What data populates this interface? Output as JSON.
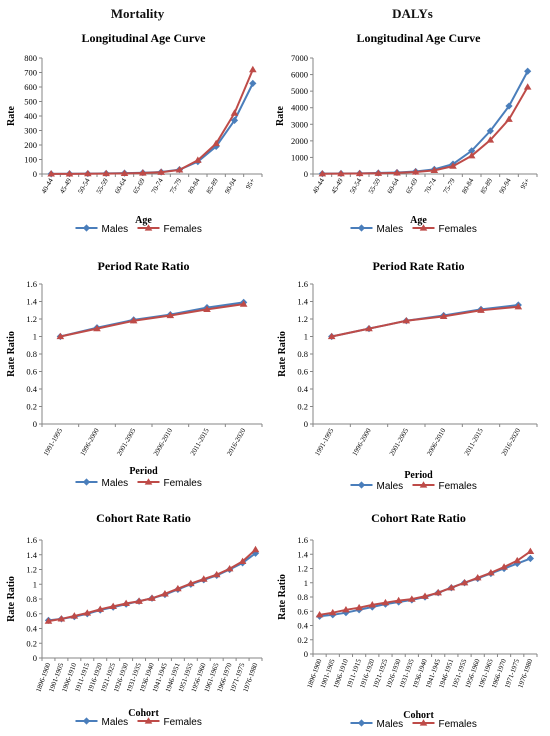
{
  "columns": {
    "mortality": "Mortality",
    "dalys": "DALYs"
  },
  "colors": {
    "males": "#4a7ebb",
    "females": "#be4b48",
    "axis": "#868686"
  },
  "chart_data": [
    {
      "id": "mort-age",
      "type": "line",
      "title": "Longitudinal Age Curve",
      "xlabel": "Age",
      "ylabel": "Rate",
      "ylim": [
        0,
        800
      ],
      "yticks": [
        "0",
        "100",
        "200",
        "300",
        "400",
        "500",
        "600",
        "700",
        "800"
      ],
      "categories": [
        "40-44",
        "45-49",
        "50-54",
        "55-59",
        "60-64",
        "65-69",
        "70-74",
        "75-79",
        "80-84",
        "85-89",
        "90-94",
        "95+"
      ],
      "series": [
        {
          "name": "Males",
          "values": [
            1,
            2,
            3,
            4,
            6,
            9,
            14,
            30,
            85,
            190,
            370,
            625
          ]
        },
        {
          "name": "Females",
          "values": [
            1,
            1,
            2,
            3,
            4,
            7,
            12,
            28,
            95,
            210,
            420,
            720
          ]
        }
      ]
    },
    {
      "id": "daly-age",
      "type": "line",
      "title": "Longitudinal Age Curve",
      "xlabel": "Age",
      "ylabel": "Rate",
      "ylim": [
        0,
        7000
      ],
      "yticks": [
        "0",
        "1000",
        "2000",
        "3000",
        "4000",
        "5000",
        "6000",
        "7000"
      ],
      "categories": [
        "40-44",
        "45-49",
        "50-54",
        "55-59",
        "60-64",
        "65-69",
        "70-74",
        "75-79",
        "80-84",
        "85-89",
        "90-94",
        "95+"
      ],
      "series": [
        {
          "name": "Males",
          "values": [
            20,
            30,
            40,
            60,
            90,
            150,
            280,
            600,
            1400,
            2600,
            4100,
            6200
          ]
        },
        {
          "name": "Females",
          "values": [
            15,
            22,
            30,
            45,
            70,
            120,
            220,
            470,
            1100,
            2050,
            3300,
            5250
          ]
        }
      ]
    },
    {
      "id": "mort-period",
      "type": "line",
      "title": "Period Rate Ratio",
      "xlabel": "Period",
      "ylabel": "Rate Ratio",
      "ylim": [
        0,
        1.6
      ],
      "yticks": [
        "0",
        "0.2",
        "0.4",
        "0.6",
        "0.8",
        "1",
        "1.2",
        "1.4",
        "1.6"
      ],
      "categories": [
        "1991-1995",
        "1996-2000",
        "2001-2005",
        "2006-2010",
        "2011-2015",
        "2016-2020"
      ],
      "series": [
        {
          "name": "Males",
          "values": [
            1.0,
            1.1,
            1.19,
            1.25,
            1.33,
            1.39
          ]
        },
        {
          "name": "Females",
          "values": [
            1.0,
            1.09,
            1.18,
            1.24,
            1.31,
            1.37
          ]
        }
      ]
    },
    {
      "id": "daly-period",
      "type": "line",
      "title": "Period Rate Ratio",
      "xlabel": "Period",
      "ylabel": "Rate Ratio",
      "ylim": [
        0,
        1.6
      ],
      "yticks": [
        "0",
        "0.2",
        "0.4",
        "0.6",
        "0.8",
        "1",
        "1.2",
        "1.4",
        "1.6"
      ],
      "categories": [
        "1991-1995",
        "1996-2000",
        "2001-2005",
        "2006-2010",
        "2011-2015",
        "2016-2020"
      ],
      "series": [
        {
          "name": "Males",
          "values": [
            1.0,
            1.09,
            1.18,
            1.24,
            1.31,
            1.36
          ]
        },
        {
          "name": "Females",
          "values": [
            1.0,
            1.09,
            1.18,
            1.23,
            1.3,
            1.34
          ]
        }
      ]
    },
    {
      "id": "mort-cohort",
      "type": "line",
      "title": "Cohort Rate Ratio",
      "xlabel": "Cohort",
      "ylabel": "Rate Ratio",
      "ylim": [
        0,
        1.6
      ],
      "yticks": [
        "0",
        "0.2",
        "0.4",
        "0.6",
        "0.8",
        "1",
        "1.2",
        "1.4",
        "1.6"
      ],
      "categories": [
        "1896-1900",
        "1901-1905",
        "1906-1910",
        "1911-1915",
        "1916-1920",
        "1921-1925",
        "1926-1930",
        "1931-1935",
        "1936-1940",
        "1941-1945",
        "1946-1951",
        "1951-1955",
        "1956-1960",
        "1961-1965",
        "1966-1970",
        "1971-1975",
        "1976-1980"
      ],
      "series": [
        {
          "name": "Males",
          "values": [
            0.51,
            0.53,
            0.56,
            0.6,
            0.65,
            0.69,
            0.73,
            0.77,
            0.81,
            0.86,
            0.93,
            1.0,
            1.06,
            1.12,
            1.2,
            1.29,
            1.42
          ]
        },
        {
          "name": "Females",
          "values": [
            0.5,
            0.53,
            0.57,
            0.61,
            0.66,
            0.7,
            0.74,
            0.77,
            0.81,
            0.87,
            0.94,
            1.01,
            1.07,
            1.13,
            1.21,
            1.31,
            1.47
          ]
        }
      ]
    },
    {
      "id": "daly-cohort",
      "type": "line",
      "title": "Cohort Rate Ratio",
      "xlabel": "Cohort",
      "ylabel": "Rate Ratio",
      "ylim": [
        0,
        1.6
      ],
      "yticks": [
        "0",
        "0.2",
        "0.4",
        "0.6",
        "0.8",
        "1",
        "1.2",
        "1.4",
        "1.6"
      ],
      "categories": [
        "1896-1900",
        "1901-1905",
        "1906-1910",
        "1911-1915",
        "1916-1920",
        "1921-1925",
        "1926-1930",
        "1931-1935",
        "1936-1940",
        "1941-1945",
        "1946-1951",
        "1951-1955",
        "1956-1960",
        "1961-1965",
        "1966-1970",
        "1971-1975",
        "1976-1980"
      ],
      "series": [
        {
          "name": "Males",
          "values": [
            0.53,
            0.55,
            0.58,
            0.62,
            0.66,
            0.7,
            0.73,
            0.76,
            0.8,
            0.86,
            0.93,
            1.0,
            1.06,
            1.13,
            1.2,
            1.27,
            1.34
          ]
        },
        {
          "name": "Females",
          "values": [
            0.55,
            0.58,
            0.62,
            0.65,
            0.69,
            0.72,
            0.75,
            0.77,
            0.81,
            0.86,
            0.93,
            1.0,
            1.07,
            1.14,
            1.22,
            1.31,
            1.44
          ]
        }
      ]
    }
  ]
}
